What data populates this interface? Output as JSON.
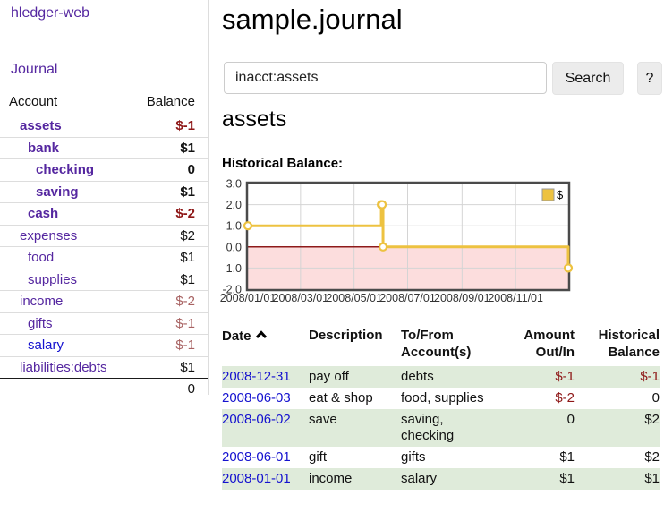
{
  "app": {
    "brand": "hledger-web"
  },
  "nav": {
    "journal": "Journal"
  },
  "sidebar": {
    "header": {
      "account": "Account",
      "balance": "Balance"
    },
    "rows": [
      {
        "account": "assets",
        "balance": "$-1"
      },
      {
        "account": "bank",
        "balance": "$1"
      },
      {
        "account": "checking",
        "balance": "0"
      },
      {
        "account": "saving",
        "balance": "$1"
      },
      {
        "account": "cash",
        "balance": "$-2"
      },
      {
        "account": "expenses",
        "balance": "$2"
      },
      {
        "account": "food",
        "balance": "$1"
      },
      {
        "account": "supplies",
        "balance": "$1"
      },
      {
        "account": "income",
        "balance": "$-2"
      },
      {
        "account": "gifts",
        "balance": "$-1"
      },
      {
        "account": "salary",
        "balance": "$-1"
      },
      {
        "account": "liabilities:debts",
        "balance": "$1"
      }
    ],
    "total": "0"
  },
  "main": {
    "title": "sample.journal",
    "heading": "assets",
    "chart_title": "Historical Balance:"
  },
  "search": {
    "value": "inacct:assets",
    "clear_icon": "×",
    "button_label": "Search",
    "help_label": "?"
  },
  "chart_data": {
    "type": "line",
    "line_style": "steps",
    "title": "Historical Balance",
    "series": [
      {
        "name": "$",
        "color": "#edc240",
        "points": [
          [
            "2008-01-01",
            1
          ],
          [
            "2008-06-01",
            2
          ],
          [
            "2008-06-02",
            2
          ],
          [
            "2008-06-03",
            0
          ],
          [
            "2008-12-31",
            -1
          ]
        ]
      }
    ],
    "x_range": [
      "2008-01-01",
      "2008-12-31"
    ],
    "ylim": [
      -2,
      3
    ],
    "y_ticks": [
      3,
      2,
      1,
      0,
      -1,
      -2
    ],
    "x_ticks": [
      "2008/01/01",
      "2008/03/01",
      "2008/05/01",
      "2008/07/01",
      "2008/09/01",
      "2008/11/01"
    ],
    "legend": {
      "position": "top-right",
      "label": "$"
    },
    "grid": true,
    "colors": {
      "negative_fill": "#fcdddd",
      "zero_line": "#8e1a1a",
      "grid_line": "#d4d4d4",
      "border": "#4a4a4a",
      "tick_text": "#333333"
    }
  },
  "register": {
    "headers": {
      "date": "Date",
      "description": "Description",
      "accounts": "To/From Account(s)",
      "amount": "Amount Out/In",
      "balance": "Historical Balance"
    },
    "rows": [
      {
        "date": "2008-12-31",
        "description": "pay off",
        "accounts": "debts",
        "amount": "$-1",
        "balance": "$-1"
      },
      {
        "date": "2008-06-03",
        "description": "eat & shop",
        "accounts": "food, supplies",
        "amount": "$-2",
        "balance": "0"
      },
      {
        "date": "2008-06-02",
        "description": "save",
        "accounts": "saving, checking",
        "amount": "0",
        "balance": "$2"
      },
      {
        "date": "2008-06-01",
        "description": "gift",
        "accounts": "gifts",
        "amount": "$1",
        "balance": "$2"
      },
      {
        "date": "2008-01-01",
        "description": "income",
        "accounts": "salary",
        "amount": "$1",
        "balance": "$1"
      }
    ]
  }
}
